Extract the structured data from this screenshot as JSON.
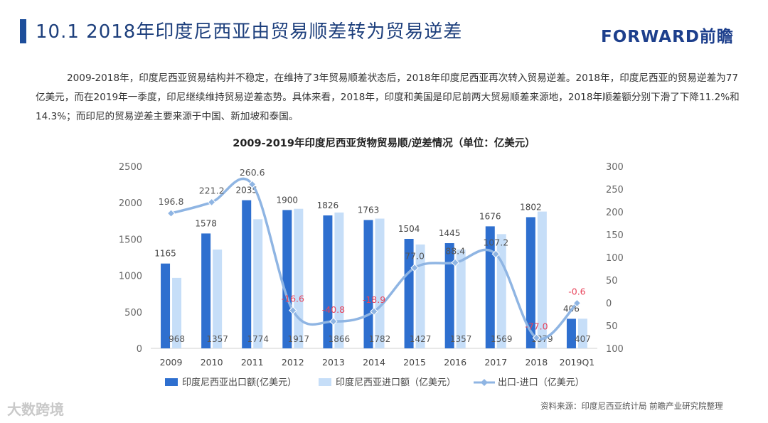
{
  "header": {
    "title": "10.1 2018年印度尼西亚由贸易顺差转为贸易逆差",
    "logo": "FORWARD前瞻"
  },
  "paragraph": "2009-2018年，印度尼西亚贸易结构并不稳定，在维持了3年贸易顺差状态后，2018年印度尼西亚再次转入贸易逆差。2018年，印度尼西亚的贸易逆差为77亿美元，而在2019年一季度，印尼继续维持贸易逆差态势。具体来看，2018年，印度和美国是印尼前两大贸易顺差来源地，2018年顺差额分别下滑了下降11.2%和14.3%；而印尼的贸易逆差主要来源于中国、新加坡和泰国。",
  "source": "资料来源：印度尼西亚统计局  前瞻产业研究院整理",
  "watermark": "大数跨境",
  "chart_data": {
    "type": "bar",
    "title": "2009-2019年印度尼西亚货物贸易顺/逆差情况（单位：亿美元）",
    "categories": [
      "2009",
      "2010",
      "2011",
      "2012",
      "2013",
      "2014",
      "2015",
      "2016",
      "2017",
      "2018",
      "2019Q1"
    ],
    "series": [
      {
        "name": "印度尼西亚出口额(亿美元）",
        "type": "bar",
        "axis": "left",
        "color": "#2e6fcf",
        "values": [
          1165,
          1578,
          2035,
          1900,
          1826,
          1763,
          1504,
          1445,
          1676,
          1802,
          406
        ]
      },
      {
        "name": "印度尼西亚进口额（亿美元）",
        "type": "bar",
        "axis": "left",
        "color": "#c6def8",
        "values": [
          968,
          1357,
          1774,
          1917,
          1866,
          1782,
          1427,
          1357,
          1569,
          1879,
          407
        ]
      },
      {
        "name": "出口-进口（亿美元）",
        "type": "line",
        "axis": "right",
        "color": "#8fb5e3",
        "values": [
          196.8,
          221.2,
          260.6,
          -16.6,
          -40.8,
          -18.9,
          77.0,
          88.4,
          107.2,
          -77.0,
          -0.6
        ]
      }
    ],
    "left_axis": {
      "min": 0,
      "max": 2500,
      "ticks": [
        0,
        500,
        1000,
        1500,
        2000,
        2500
      ]
    },
    "right_axis": {
      "min": -100,
      "max": 300,
      "ticks": [
        -100,
        -50,
        0,
        50,
        100,
        150,
        200,
        250,
        300
      ],
      "tick_labels": [
        "100",
        "50",
        "0",
        "50",
        "100",
        "150",
        "200",
        "250",
        "300"
      ]
    },
    "line_label_colors": {
      "positive": "#555555",
      "negative": "#e8435a"
    },
    "legend_position": "bottom",
    "grid": false
  }
}
